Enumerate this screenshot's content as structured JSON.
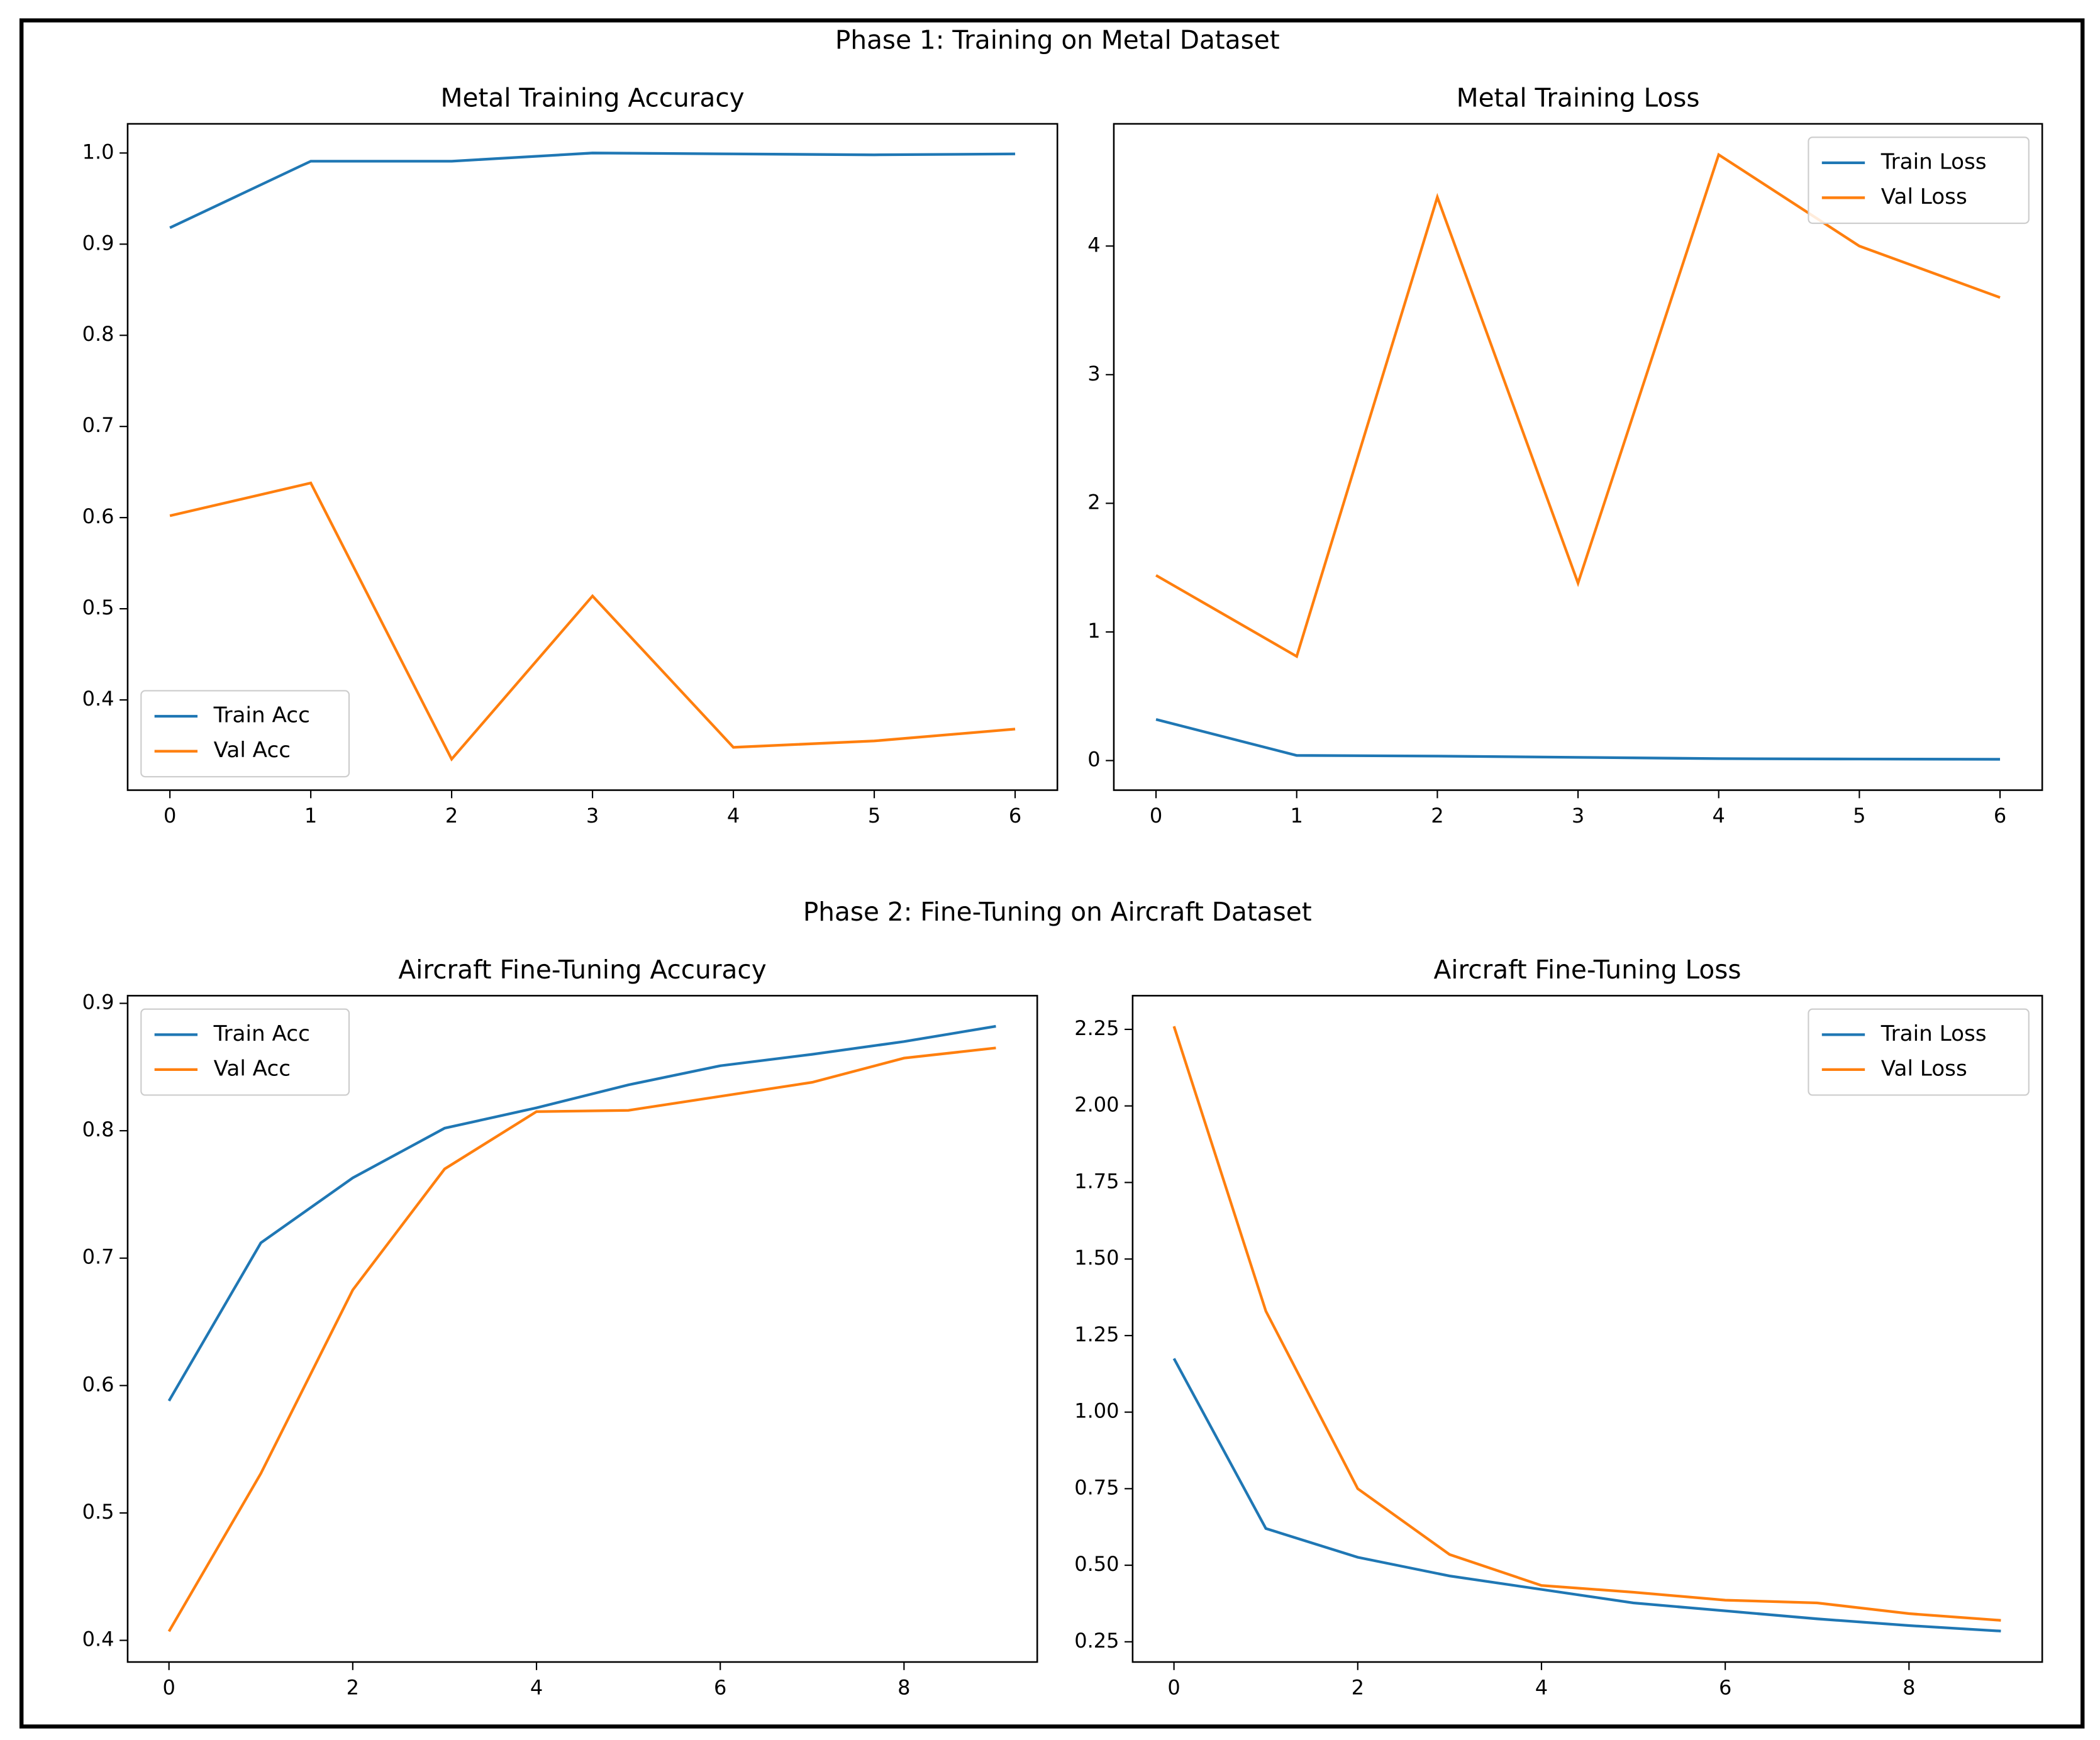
{
  "sections": [
    {
      "title": "Phase 1: Training on Metal Dataset"
    },
    {
      "title": "Phase 2: Fine-Tuning on Aircraft Dataset"
    }
  ],
  "chart_data": [
    {
      "type": "line",
      "title": "Metal Training Accuracy",
      "x": [
        0,
        1,
        2,
        3,
        4,
        5,
        6
      ],
      "series": [
        {
          "name": "Train Acc",
          "color": "#1f77b4",
          "values": [
            0.918,
            0.991,
            0.991,
            1.0,
            0.999,
            0.998,
            0.999
          ]
        },
        {
          "name": "Val Acc",
          "color": "#ff7f0e",
          "values": [
            0.602,
            0.638,
            0.335,
            0.514,
            0.348,
            0.355,
            0.368
          ]
        }
      ],
      "xlim": [
        -0.3,
        6.3
      ],
      "xticks": [
        0,
        1,
        2,
        3,
        4,
        5,
        6
      ],
      "ylim": [
        0.301,
        1.032
      ],
      "yticks": [
        0.4,
        0.5,
        0.6,
        0.7,
        0.8,
        0.9,
        {
          "value": 1,
          "label": "1.0"
        }
      ],
      "legend": "lower-left",
      "grid": false
    },
    {
      "type": "line",
      "title": "Metal Training Loss",
      "x": [
        0,
        1,
        2,
        3,
        4,
        5,
        6
      ],
      "series": [
        {
          "name": "Train Loss",
          "color": "#1f77b4",
          "values": [
            0.32,
            0.04,
            0.035,
            0.025,
            0.015,
            0.012,
            0.01
          ]
        },
        {
          "name": "Val Loss",
          "color": "#ff7f0e",
          "values": [
            1.44,
            0.81,
            4.38,
            1.38,
            4.71,
            4.0,
            3.6
          ]
        }
      ],
      "xlim": [
        -0.3,
        6.3
      ],
      "xticks": [
        0,
        1,
        2,
        3,
        4,
        5,
        6
      ],
      "ylim": [
        -0.23,
        4.95
      ],
      "yticks": [
        0,
        1,
        2,
        3,
        4
      ],
      "legend": "upper-right",
      "grid": false
    },
    {
      "type": "line",
      "title": "Aircraft Fine-Tuning Accuracy",
      "x": [
        0,
        1,
        2,
        3,
        4,
        5,
        6,
        7,
        8,
        9
      ],
      "series": [
        {
          "name": "Train Acc",
          "color": "#1f77b4",
          "values": [
            0.588,
            0.712,
            0.763,
            0.802,
            0.818,
            0.836,
            0.851,
            0.86,
            0.87,
            0.882
          ]
        },
        {
          "name": "Val Acc",
          "color": "#ff7f0e",
          "values": [
            0.407,
            0.531,
            0.675,
            0.77,
            0.815,
            0.816,
            0.827,
            0.838,
            0.857,
            0.865
          ]
        }
      ],
      "xlim": [
        -0.45,
        9.45
      ],
      "xticks": [
        0,
        2,
        4,
        6,
        8
      ],
      "ylim": [
        0.383,
        0.906
      ],
      "yticks": [
        0.4,
        0.5,
        0.6,
        0.7,
        0.8,
        0.9
      ],
      "legend": "upper-left",
      "grid": false
    },
    {
      "type": "line",
      "title": "Aircraft Fine-Tuning Loss",
      "x": [
        0,
        1,
        2,
        3,
        4,
        5,
        6,
        7,
        8,
        9
      ],
      "series": [
        {
          "name": "Train Loss",
          "color": "#1f77b4",
          "values": [
            1.175,
            0.62,
            0.526,
            0.465,
            0.421,
            0.377,
            0.351,
            0.325,
            0.303,
            0.285
          ]
        },
        {
          "name": "Val Loss",
          "color": "#ff7f0e",
          "values": [
            2.26,
            1.33,
            0.75,
            0.535,
            0.434,
            0.412,
            0.386,
            0.377,
            0.342,
            0.32
          ]
        }
      ],
      "xlim": [
        -0.45,
        9.45
      ],
      "xticks": [
        0,
        2,
        4,
        6,
        8
      ],
      "ylim": [
        0.184,
        2.36
      ],
      "yticks": [
        0.25,
        {
          "value": 0.5,
          "label": "0.50"
        },
        0.75,
        {
          "value": 1,
          "label": "1.00"
        },
        1.25,
        {
          "value": 1.5,
          "label": "1.50"
        },
        1.75,
        {
          "value": 2,
          "label": "2.00"
        },
        2.25
      ],
      "legend": "upper-right",
      "grid": false
    }
  ]
}
